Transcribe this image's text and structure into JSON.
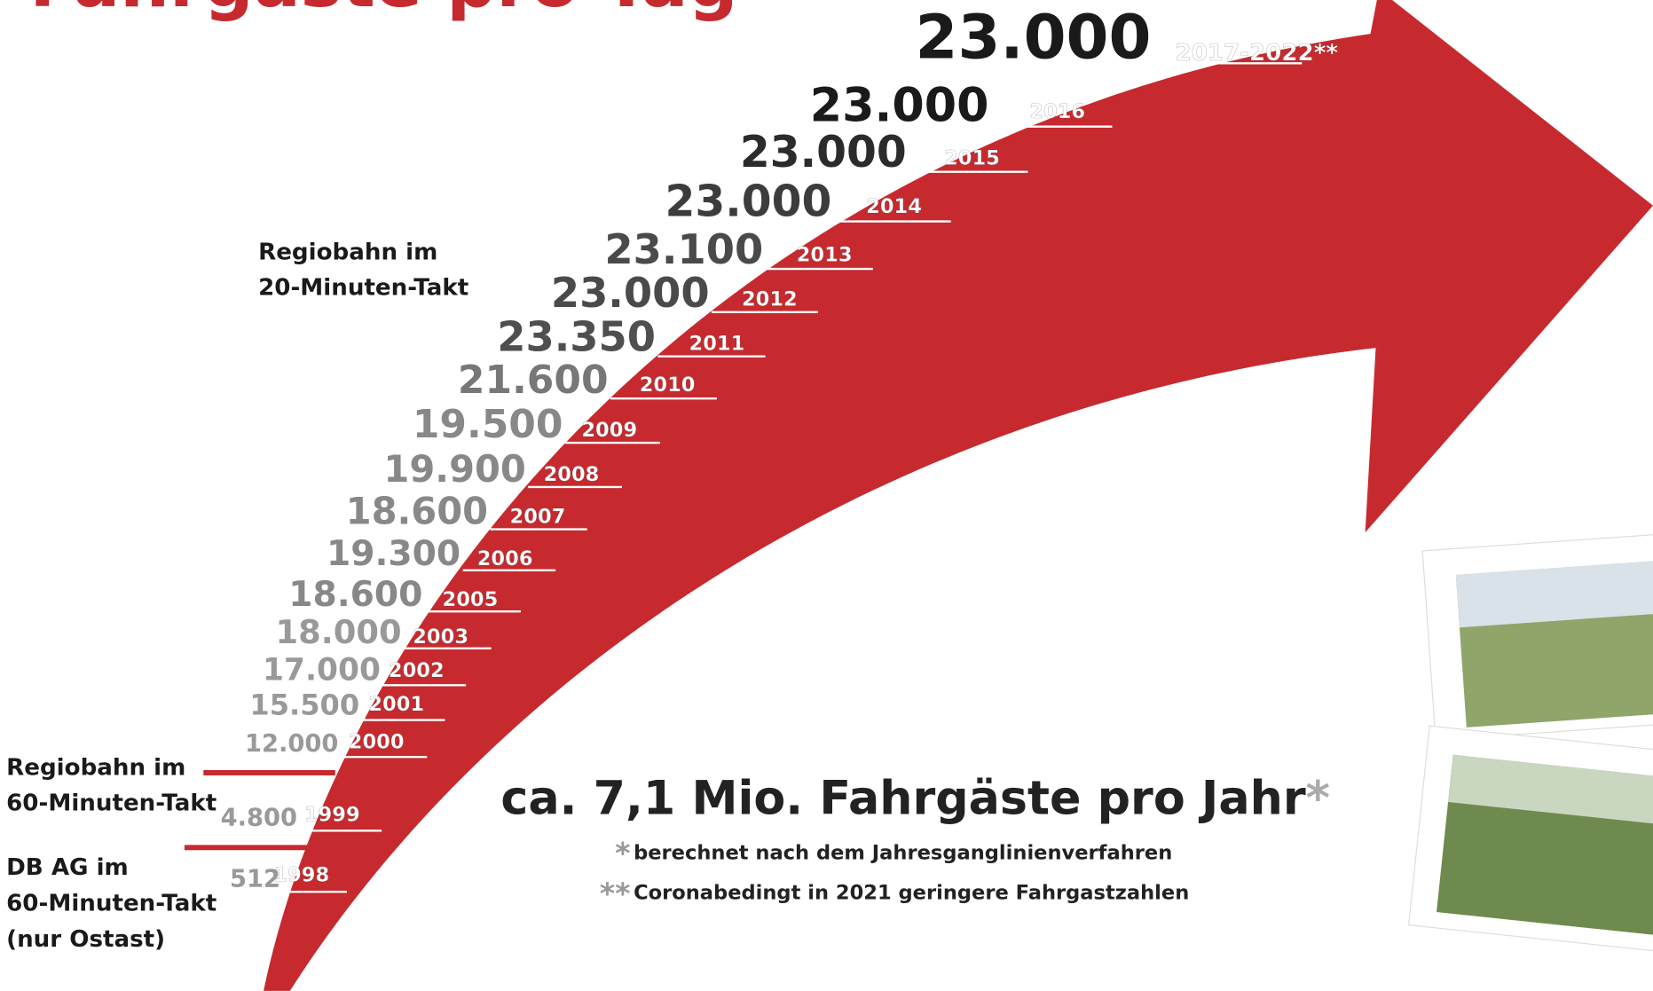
{
  "header": {
    "title": "Fahrgäste pro Tag"
  },
  "milestones": [
    {
      "value": "23.000",
      "year": "2017-2022**"
    },
    {
      "value": "23.000",
      "year": "2016"
    },
    {
      "value": "23.000",
      "year": "2015"
    },
    {
      "value": "23.000",
      "year": "2014"
    },
    {
      "value": "23.100",
      "year": "2013"
    },
    {
      "value": "23.000",
      "year": "2012"
    },
    {
      "value": "23.350",
      "year": "2011"
    },
    {
      "value": "21.600",
      "year": "2010"
    },
    {
      "value": "19.500",
      "year": "2009"
    },
    {
      "value": "19.900",
      "year": "2008"
    },
    {
      "value": "18.600",
      "year": "2007"
    },
    {
      "value": "19.300",
      "year": "2006"
    },
    {
      "value": "18.600",
      "year": "2005"
    },
    {
      "value": "18.000",
      "year": "2003"
    },
    {
      "value": "17.000",
      "year": "2002"
    },
    {
      "value": "15.500",
      "year": "2001"
    },
    {
      "value": "12.000",
      "year": "2000"
    },
    {
      "value": "4.800",
      "year": "1999"
    },
    {
      "value": "512",
      "year": "1998"
    }
  ],
  "phases": [
    {
      "lines": [
        "Regiobahn im",
        "20-Minuten-Takt"
      ]
    },
    {
      "lines": [
        "Regiobahn im",
        "60-Minuten-Takt"
      ]
    },
    {
      "lines": [
        "DB AG im",
        "60-Minuten-Takt",
        "(nur Ostast)"
      ]
    }
  ],
  "summary": {
    "text": "ca. 7,1 Mio. Fahrgäste pro Jahr",
    "marker": "*"
  },
  "notes": [
    {
      "marker": "*",
      "text": "berechnet nach dem Jahresganglinienverfahren"
    },
    {
      "marker": "**",
      "text": "Coronabedingt in 2021 geringere Fahrgastzahlen"
    }
  ]
}
